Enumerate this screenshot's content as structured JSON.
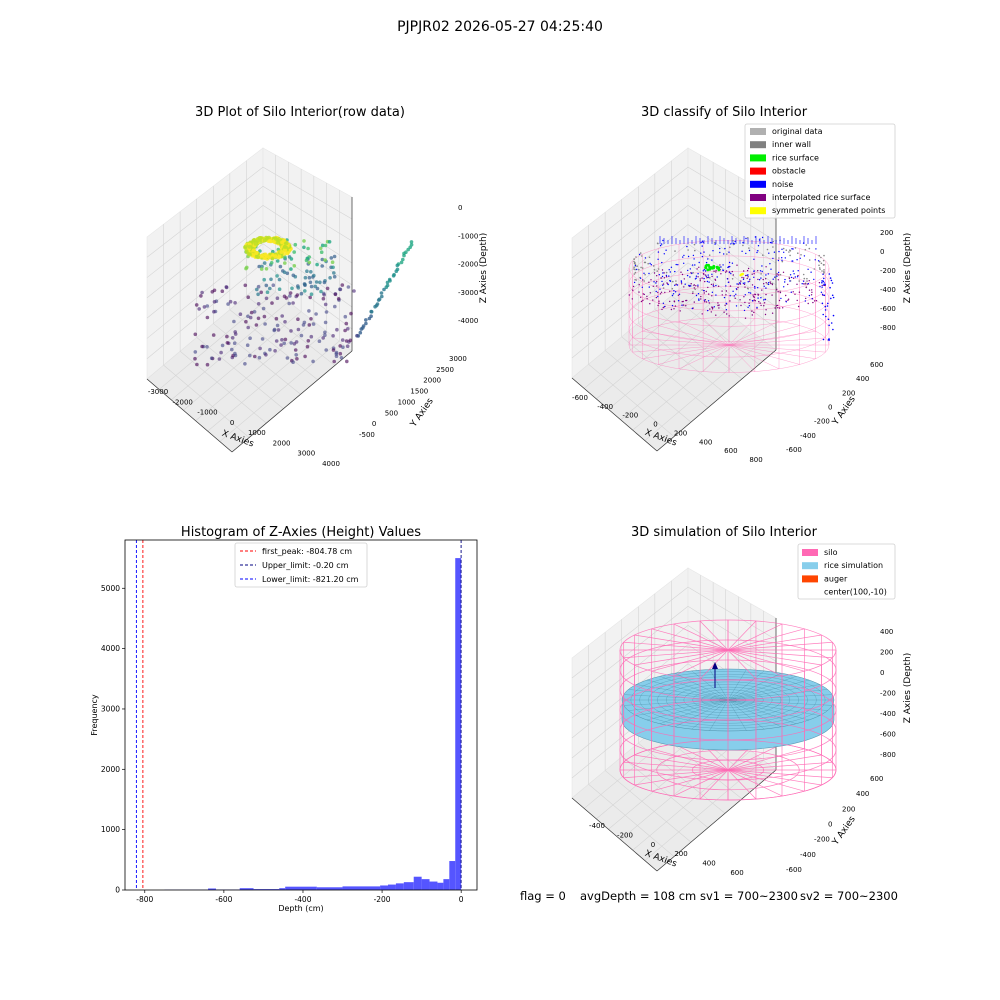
{
  "suptitle": "PJPJR02 2026-05-27 04:25:40",
  "chart_data": [
    {
      "type": "scatter",
      "projection": "3d",
      "title": "3D Plot of Silo Interior(row data)",
      "xlabel": "X Axies",
      "ylabel": "Y Axies",
      "zlabel": "Z Axies (Depth)",
      "xlim": [
        -3000,
        4500
      ],
      "ylim": [
        -500,
        3000
      ],
      "zlim": [
        -4500,
        0
      ],
      "x_ticks": [
        "-3000",
        "-2000",
        "-1000",
        "0",
        "1000",
        "2000",
        "3000",
        "4000"
      ],
      "y_ticks": [
        "-500",
        "0",
        "500",
        "1000",
        "1500",
        "2000",
        "2500",
        "3000"
      ],
      "z_ticks": [
        "0",
        "-1000",
        "-2000",
        "-3000",
        "-4000"
      ],
      "colormap": "viridis",
      "grid": true
    },
    {
      "type": "scatter",
      "projection": "3d",
      "title": "3D classify of Silo Interior",
      "xlabel": "X Axies",
      "ylabel": "Y Axies",
      "zlabel": "Z Axies (Depth)",
      "x_ticks": [
        "-600",
        "-400",
        "-200",
        "0",
        "200",
        "400",
        "600",
        "800"
      ],
      "y_ticks": [
        "-600",
        "-400",
        "-200",
        "0",
        "200",
        "400",
        "600"
      ],
      "z_ticks": [
        "200",
        "0",
        "-200",
        "-400",
        "-600",
        "-800"
      ],
      "legend": {
        "position": "upper-right",
        "items": [
          {
            "label": "original data",
            "color": "#b0b0b0"
          },
          {
            "label": "inner wall",
            "color": "#808080"
          },
          {
            "label": "rice surface",
            "color": "#00ee00"
          },
          {
            "label": "obstacle",
            "color": "#ff0000"
          },
          {
            "label": "noise",
            "color": "#0000ff"
          },
          {
            "label": "interpolated rice surface",
            "color": "#800080"
          },
          {
            "label": "symmetric generated points",
            "color": "#ffff00"
          }
        ]
      },
      "grid": true
    },
    {
      "type": "bar",
      "subtype": "histogram",
      "title": "Histogram of Z-Axies (Height) Values",
      "xlabel": "Depth (cm)",
      "ylabel": "Frequency",
      "xlim": [
        -850,
        40
      ],
      "ylim": [
        0,
        5800
      ],
      "x_ticks": [
        -800,
        -600,
        -400,
        -200,
        0
      ],
      "y_ticks": [
        0,
        1000,
        2000,
        3000,
        4000,
        5000
      ],
      "bar_color": "#5555ff",
      "bins": [
        {
          "x0": -800,
          "x1": -750,
          "y": 0
        },
        {
          "x0": -750,
          "x1": -640,
          "y": 5
        },
        {
          "x0": -640,
          "x1": -620,
          "y": 25
        },
        {
          "x0": -620,
          "x1": -560,
          "y": 8
        },
        {
          "x0": -560,
          "x1": -525,
          "y": 30
        },
        {
          "x0": -525,
          "x1": -460,
          "y": 15
        },
        {
          "x0": -460,
          "x1": -445,
          "y": 30
        },
        {
          "x0": -445,
          "x1": -365,
          "y": 55
        },
        {
          "x0": -365,
          "x1": -300,
          "y": 45
        },
        {
          "x0": -300,
          "x1": -205,
          "y": 60
        },
        {
          "x0": -205,
          "x1": -185,
          "y": 75
        },
        {
          "x0": -185,
          "x1": -165,
          "y": 90
        },
        {
          "x0": -165,
          "x1": -145,
          "y": 110
        },
        {
          "x0": -145,
          "x1": -120,
          "y": 130
        },
        {
          "x0": -120,
          "x1": -100,
          "y": 220
        },
        {
          "x0": -100,
          "x1": -80,
          "y": 180
        },
        {
          "x0": -80,
          "x1": -60,
          "y": 140
        },
        {
          "x0": -60,
          "x1": -45,
          "y": 120
        },
        {
          "x0": -45,
          "x1": -30,
          "y": 180
        },
        {
          "x0": -30,
          "x1": -15,
          "y": 480
        },
        {
          "x0": -15,
          "x1": 0,
          "y": 5500
        }
      ],
      "vlines": [
        {
          "label": "first_peak: -804.78 cm",
          "x": -804.78,
          "color": "#ff0000"
        },
        {
          "label": "Upper_limit: -0.20 cm",
          "x": -0.2,
          "color": "#000080"
        },
        {
          "label": "Lower_limit: -821.20 cm",
          "x": -821.2,
          "color": "#0000ff"
        }
      ],
      "legend_position": "upper-center"
    },
    {
      "type": "area",
      "projection": "3d",
      "title": "3D simulation of Silo Interior",
      "xlabel": "X Axies",
      "ylabel": "Y Axies",
      "zlabel": "Z Axies (Depth)",
      "x_ticks": [
        "-400",
        "-200",
        "0",
        "200",
        "400",
        "600"
      ],
      "y_ticks": [
        "-600",
        "-400",
        "-200",
        "0",
        "200",
        "400",
        "600"
      ],
      "z_ticks": [
        "400",
        "200",
        "0",
        "-200",
        "-400",
        "-600",
        "-800"
      ],
      "legend": {
        "position": "upper-right",
        "items": [
          {
            "label": "silo",
            "color": "#ff69b4"
          },
          {
            "label": "rice simulation",
            "color": "#87ceeb"
          },
          {
            "label": "auger",
            "color": "#ff4500"
          },
          {
            "label": "center(100,-10)",
            "color": ""
          }
        ]
      },
      "grid": true
    }
  ],
  "status": {
    "flag": "flag = 0",
    "avg_depth": "avgDepth = 108 cm",
    "sv1": "sv1 = 700~2300",
    "sv2": "sv2 = 700~2300"
  }
}
